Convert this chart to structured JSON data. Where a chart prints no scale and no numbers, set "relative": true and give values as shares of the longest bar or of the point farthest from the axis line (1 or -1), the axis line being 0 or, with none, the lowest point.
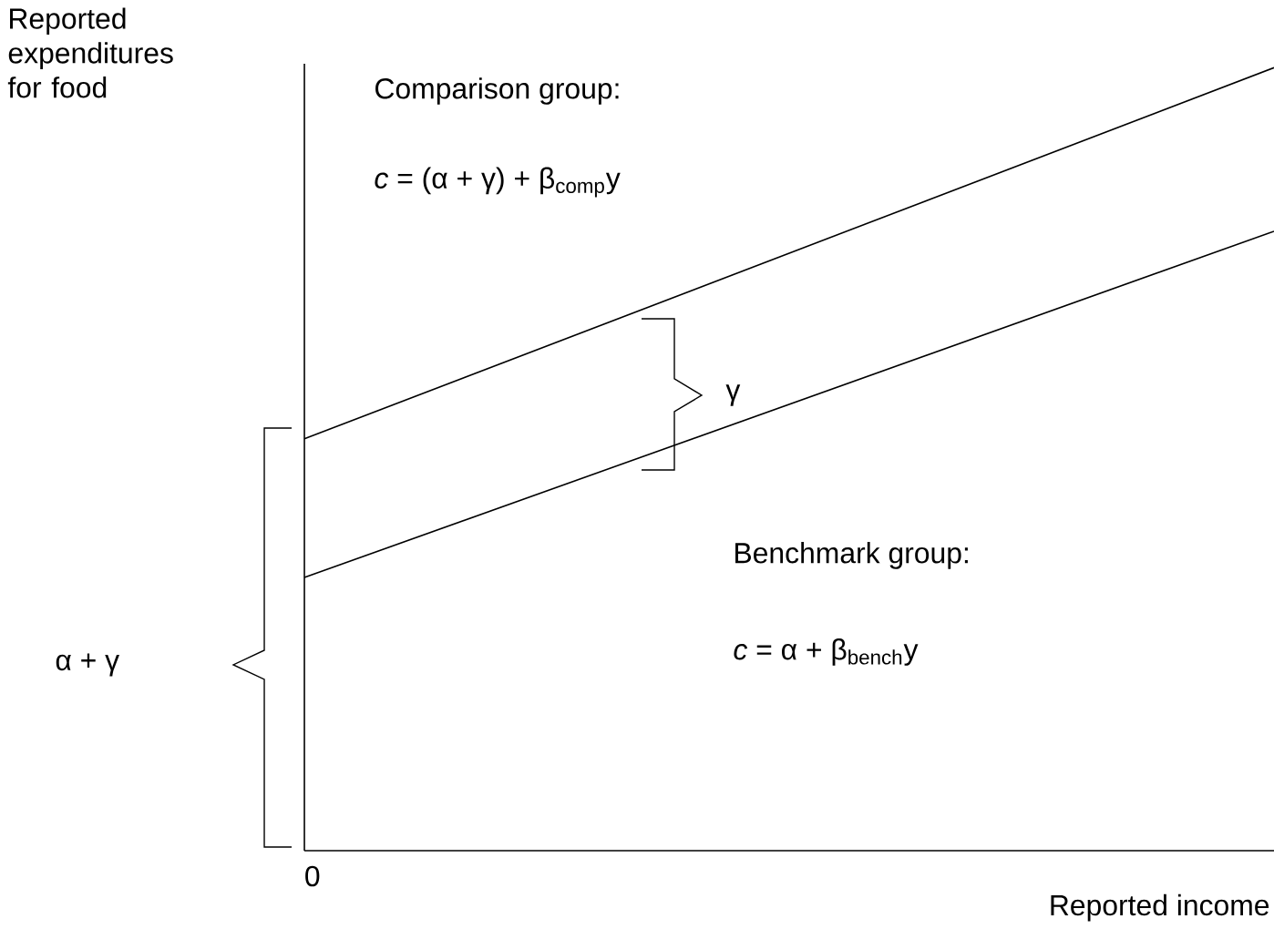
{
  "chart_data": {
    "type": "line",
    "relative": true,
    "categories": [
      null,
      null
    ],
    "series": [
      {
        "color": "#000000",
        "values": [
          0.526,
          1
        ]
      },
      {
        "color": "#000000",
        "values": [
          0.349,
          0.791
        ]
      }
    ],
    "ylabel": "Reported expenditures for food",
    "xlabel": "Reported income",
    "annotations": [
      "Comparison group:",
      "*c* = (α + γ) + β$_{comp}$y",
      "γ",
      "Benchmark group:",
      "*c* = α + β$_{bench}$y",
      "α + γ",
      "0"
    ]
  }
}
